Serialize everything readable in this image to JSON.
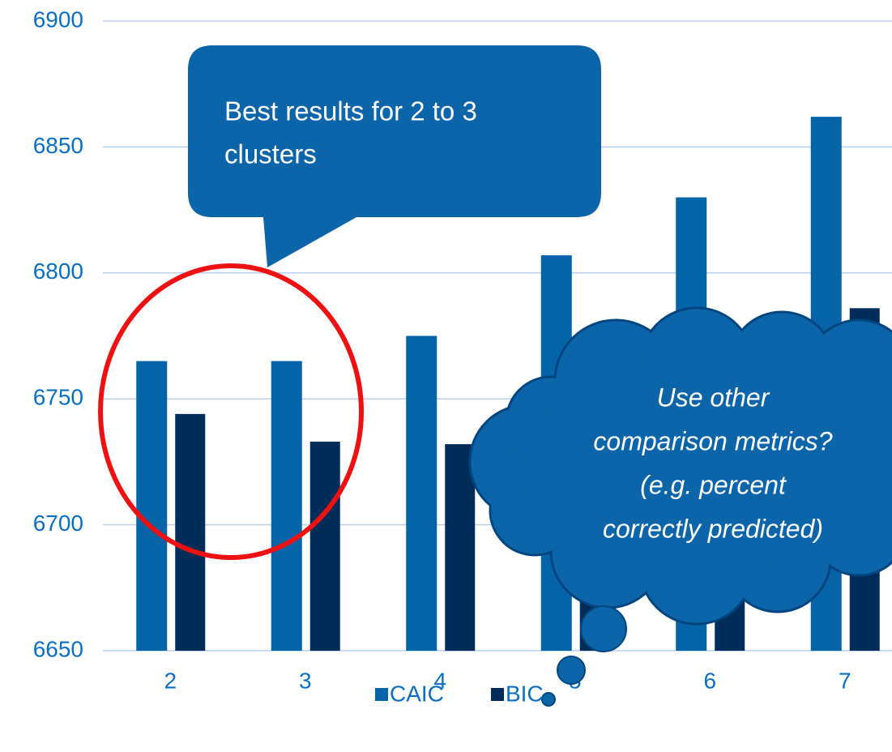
{
  "chart_data": {
    "type": "bar",
    "categories": [
      "2",
      "3",
      "4",
      "5",
      "6",
      "7"
    ],
    "series": [
      {
        "name": "CAIC",
        "color": "#0563a8",
        "values": [
          6765,
          6765,
          6775,
          6807,
          6830,
          6862
        ]
      },
      {
        "name": "BIC",
        "color": "#002c5a",
        "values": [
          6744,
          6733,
          6732,
          6730,
          6760,
          6786
        ]
      }
    ],
    "ylim": [
      6650,
      6900
    ],
    "yticks": [
      6650,
      6700,
      6750,
      6800,
      6850,
      6900
    ],
    "grid": true,
    "legend": "bottom",
    "annotations": [
      [
        "Best results for 2 to 3",
        "clusters"
      ],
      [
        "Use other",
        "comparison metrics?",
        "(e.g. percent",
        "correctly predicted)"
      ]
    ]
  }
}
